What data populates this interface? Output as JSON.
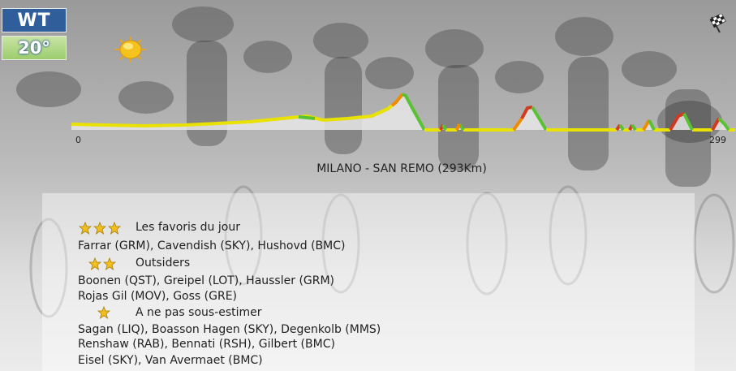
{
  "badges": {
    "category": "WT",
    "temperature": "20°"
  },
  "icons": {
    "weather": "sun-icon",
    "finish": "checkered-flag-icon"
  },
  "profile": {
    "start_km": "0",
    "end_km": "299",
    "colors": {
      "easy": "#e9e100",
      "medium": "#f08a00",
      "hard": "#d13a1e",
      "descent": "#58c232"
    }
  },
  "race": {
    "title": "MILANO - SAN REMO (293Km)"
  },
  "favorites": [
    {
      "stars": 3,
      "label": "Les favoris du jour",
      "riders": [
        "Farrar (GRM), Cavendish (SKY), Hushovd (BMC)"
      ]
    },
    {
      "stars": 2,
      "label": "Outsiders",
      "riders": [
        "Boonen (QST), Greipel (LOT), Haussler (GRM)",
        "Rojas Gil (MOV), Goss (GRE)"
      ]
    },
    {
      "stars": 1,
      "label": "A ne pas sous-estimer",
      "riders": [
        "Sagan (LIQ), Boasson Hagen (SKY), Degenkolb (MMS)",
        "Renshaw (RAB), Bennati (RSH), Gilbert (BMC)",
        "Eisel (SKY), Van Avermaet (BMC)"
      ]
    }
  ]
}
